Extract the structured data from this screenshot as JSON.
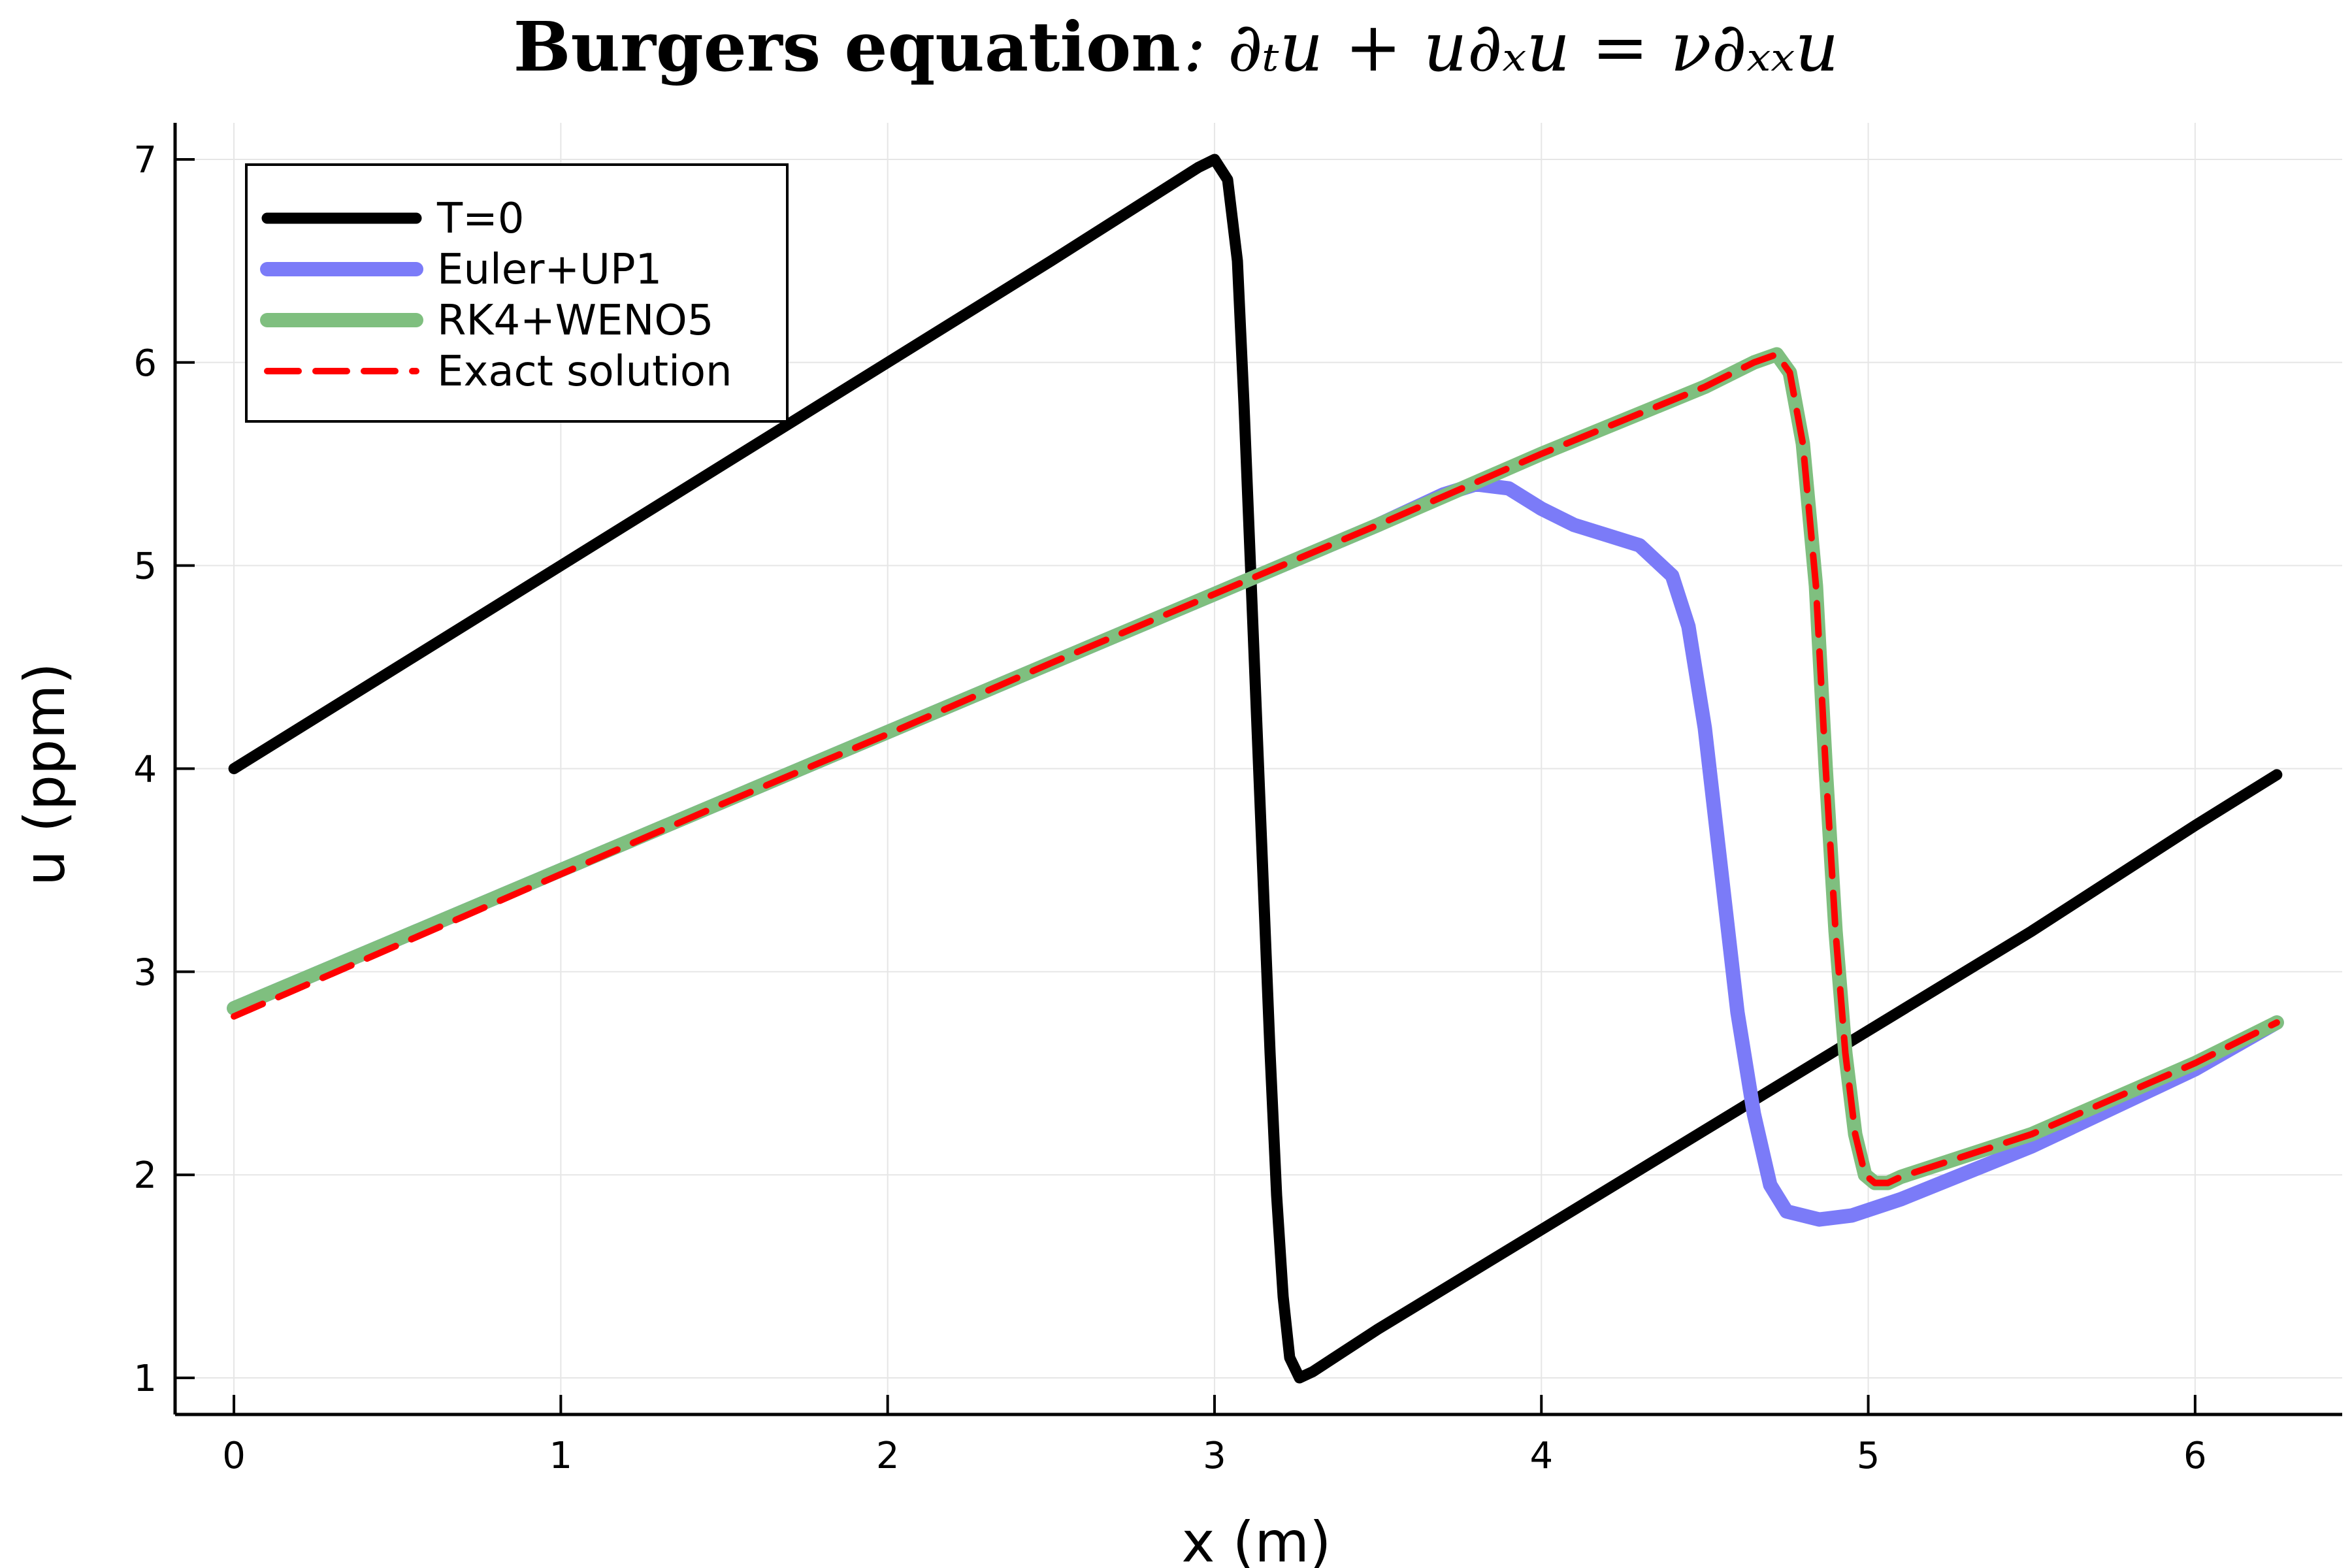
{
  "chart_data": {
    "type": "line",
    "title_bold": "Burgers equation",
    "title_math": ": ∂ₜu + u∂ₓu = ν∂ₓₓu",
    "xlabel": "x (m)",
    "ylabel": "u (ppm)",
    "xlim": [
      -0.18,
      6.45
    ],
    "ylim": [
      0.82,
      7.18
    ],
    "xticks": [
      0,
      1,
      2,
      3,
      4,
      5,
      6
    ],
    "yticks": [
      1,
      2,
      3,
      4,
      5,
      6,
      7
    ],
    "grid": true,
    "legend_position": "top-left",
    "series": [
      {
        "name": "T=0",
        "color": "#000000",
        "dash": "solid",
        "opacity": 1,
        "x": [
          0,
          0.5,
          1,
          1.5,
          2,
          2.5,
          2.95,
          3.0,
          3.04,
          3.07,
          3.09,
          3.11,
          3.13,
          3.15,
          3.17,
          3.19,
          3.21,
          3.23,
          3.26,
          3.3,
          3.5,
          4,
          4.5,
          5,
          5.5,
          6,
          6.25
        ],
        "y": [
          4.0,
          4.5,
          5.0,
          5.5,
          6.0,
          6.5,
          6.96,
          7.0,
          6.9,
          6.5,
          5.8,
          5.0,
          4.2,
          3.4,
          2.6,
          1.9,
          1.4,
          1.1,
          1.0,
          1.03,
          1.24,
          1.73,
          2.22,
          2.71,
          3.2,
          3.72,
          3.97
        ]
      },
      {
        "name": "Euler+UP1",
        "color": "#7b7bf8",
        "dash": "solid",
        "opacity": 1,
        "x": [
          0,
          0.5,
          1,
          1.5,
          2,
          2.5,
          3,
          3.5,
          3.7,
          3.8,
          3.9,
          4.0,
          4.1,
          4.2,
          4.3,
          4.4,
          4.45,
          4.5,
          4.55,
          4.6,
          4.65,
          4.7,
          4.75,
          4.85,
          4.95,
          5.1,
          5.5,
          6,
          6.25
        ],
        "y": [
          2.82,
          3.16,
          3.5,
          3.84,
          4.18,
          4.52,
          4.86,
          5.2,
          5.35,
          5.4,
          5.38,
          5.28,
          5.2,
          5.15,
          5.1,
          4.95,
          4.7,
          4.2,
          3.5,
          2.8,
          2.3,
          1.95,
          1.82,
          1.78,
          1.8,
          1.88,
          2.14,
          2.52,
          2.75
        ]
      },
      {
        "name": "RK4+WENO5",
        "color": "#7fbf7f",
        "dash": "solid",
        "opacity": 1,
        "x": [
          0,
          0.5,
          1,
          1.5,
          2,
          2.5,
          3,
          3.5,
          4,
          4.5,
          4.65,
          4.72,
          4.76,
          4.8,
          4.84,
          4.87,
          4.9,
          4.93,
          4.96,
          4.99,
          5.02,
          5.06,
          5.1,
          5.5,
          6,
          6.25
        ],
        "y": [
          2.82,
          3.16,
          3.5,
          3.84,
          4.18,
          4.52,
          4.86,
          5.2,
          5.55,
          5.88,
          6.0,
          6.04,
          5.95,
          5.6,
          4.9,
          4.0,
          3.2,
          2.6,
          2.2,
          2.0,
          1.96,
          1.96,
          1.99,
          2.2,
          2.55,
          2.75
        ]
      },
      {
        "name": "Exact solution",
        "color": "#ff0000",
        "dash": "dashed",
        "opacity": 1,
        "x": [
          0,
          0.5,
          1,
          1.5,
          2,
          2.5,
          3,
          3.5,
          4,
          4.5,
          4.65,
          4.72,
          4.76,
          4.8,
          4.84,
          4.87,
          4.9,
          4.93,
          4.96,
          4.99,
          5.02,
          5.06,
          5.1,
          5.5,
          6,
          6.25
        ],
        "y": [
          2.78,
          3.13,
          3.48,
          3.83,
          4.17,
          4.52,
          4.86,
          5.2,
          5.55,
          5.88,
          6.0,
          6.04,
          5.95,
          5.6,
          4.9,
          4.0,
          3.2,
          2.6,
          2.2,
          2.0,
          1.96,
          1.96,
          1.99,
          2.2,
          2.55,
          2.75
        ]
      }
    ]
  }
}
